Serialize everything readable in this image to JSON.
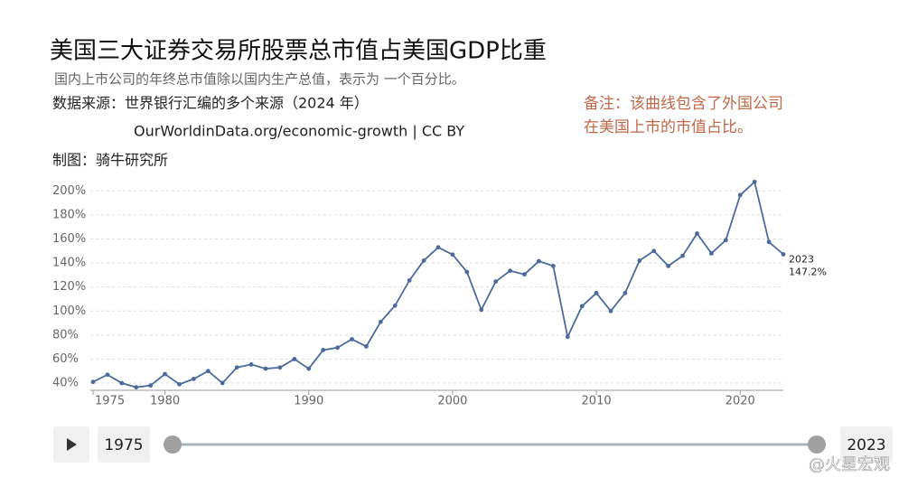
{
  "chart_data": {
    "type": "line",
    "title": "美国三大证券交易所股票总市值占美国GDP比重",
    "subtitle": "国内上市公司的年终总市值除以国内生产总值，表示为 一个百分比。",
    "source": "数据来源：世界银行汇编的多个来源（2024 年）",
    "source_url": "OurWorldinData.org/economic-growth | CC BY",
    "credit": "制图：骑牛研究所",
    "note": [
      "备注：该曲线包含了外国公司",
      "在美国上市的市值占比。"
    ],
    "watermark": "@火星宏观",
    "color": "#4c6a9c",
    "grid": true,
    "x": [
      1975,
      1976,
      1977,
      1978,
      1979,
      1980,
      1981,
      1982,
      1983,
      1984,
      1985,
      1986,
      1987,
      1988,
      1989,
      1990,
      1991,
      1992,
      1993,
      1994,
      1995,
      1996,
      1997,
      1998,
      1999,
      2000,
      2001,
      2002,
      2003,
      2004,
      2005,
      2006,
      2007,
      2008,
      2009,
      2010,
      2011,
      2012,
      2013,
      2014,
      2015,
      2016,
      2017,
      2018,
      2019,
      2020,
      2021,
      2022,
      2023
    ],
    "values": [
      41,
      47,
      40,
      36.5,
      38,
      47.5,
      39,
      43.5,
      50,
      40,
      53,
      55.5,
      52,
      53,
      60,
      52,
      67.5,
      69.5,
      76.5,
      70.5,
      91,
      104.5,
      125.5,
      142,
      153,
      147,
      132.5,
      101,
      124.5,
      133.5,
      130.5,
      141.5,
      137.5,
      78.5,
      104,
      115,
      100,
      115,
      142,
      150,
      137.5,
      146,
      164.5,
      148,
      159,
      196.5,
      207.5,
      157.5,
      147.2
    ],
    "value_labels": [
      null,
      null,
      null,
      null,
      null,
      null,
      null,
      null,
      null,
      null,
      null,
      null,
      null,
      null,
      null,
      null,
      null,
      null,
      null,
      null,
      null,
      null,
      null,
      null,
      null,
      null,
      null,
      null,
      null,
      null,
      null,
      null,
      null,
      null,
      null,
      null,
      null,
      null,
      null,
      null,
      null,
      null,
      null,
      null,
      null,
      null,
      null,
      null,
      "147.2%"
    ],
    "xlim": [
      1975,
      2023
    ],
    "xticks": [
      1975,
      1980,
      1990,
      2000,
      2010,
      2020
    ],
    "ylim": [
      34,
      210
    ],
    "yticks": [
      {
        "value": 40,
        "label": "40%"
      },
      {
        "value": 60,
        "label": "60%"
      },
      {
        "value": 80,
        "label": "80%"
      },
      {
        "value": 100,
        "label": "100%"
      },
      {
        "value": 120,
        "label": "120%"
      },
      {
        "value": 140,
        "label": "140%"
      },
      {
        "value": 160,
        "label": "160%"
      },
      {
        "value": 180,
        "label": "180%"
      },
      {
        "value": 200,
        "label": "200%"
      }
    ]
  }
}
